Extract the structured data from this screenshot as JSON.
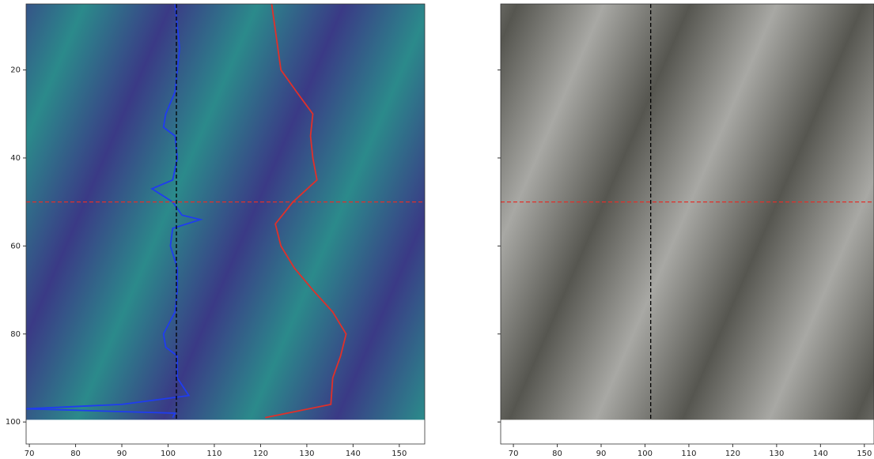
{
  "chart_data": [
    {
      "type": "image",
      "palette": [
        "#3a3a86",
        "#2b8a8b"
      ],
      "extent": [
        69.3,
        155.5,
        99.5,
        5
      ],
      "xlim": [
        69.3,
        155.5
      ],
      "ylim": [
        105,
        5
      ],
      "xticks": [
        70,
        80,
        90,
        100,
        110,
        120,
        130,
        140,
        150
      ],
      "yticks": [
        20,
        40,
        60,
        80,
        100
      ],
      "show_ytick_labels": true,
      "crosshair": {
        "x": 101.8,
        "y": 50,
        "x_color": "#000000",
        "y_color": "#e0302a"
      },
      "series": [
        {
          "color": "#e0302a",
          "x": [
            122.4,
            124.4,
            127.8,
            131.3,
            130.8,
            131.3,
            132.2,
            127,
            123.2,
            124.4,
            127.3,
            131.3,
            135.6,
            138.5,
            137.3,
            135.6,
            135.2,
            121
          ],
          "y": [
            5,
            20,
            25,
            30,
            35,
            40,
            45,
            50,
            55,
            60,
            65,
            70,
            75,
            80,
            85,
            90,
            96,
            99
          ]
        },
        {
          "color": "#1f3cf0",
          "x": [
            101.5,
            102,
            102.5,
            102,
            101.5,
            99.5,
            99,
            101.5,
            102,
            101,
            96.5,
            101,
            103,
            107,
            101,
            100.5,
            102,
            102,
            101.5,
            99,
            99.5,
            102,
            102,
            104.5,
            90,
            69.3,
            101.5,
            101
          ],
          "y": [
            5,
            10,
            15,
            20,
            25,
            30,
            33,
            35,
            40,
            45,
            47,
            50,
            53,
            54,
            56,
            60,
            65,
            70,
            75,
            80,
            83,
            85,
            90,
            94,
            96,
            97,
            98,
            99
          ]
        }
      ]
    },
    {
      "type": "image",
      "palette": [
        "#565650",
        "#a8a8a4"
      ],
      "extent": [
        67.1,
        152.2,
        99.5,
        5
      ],
      "xlim": [
        67.1,
        152.2
      ],
      "ylim": [
        105,
        5
      ],
      "xticks": [
        70,
        80,
        90,
        100,
        110,
        120,
        130,
        140,
        150
      ],
      "yticks": [
        20,
        40,
        60,
        80,
        100
      ],
      "show_ytick_labels": false,
      "crosshair": {
        "x": 101.3,
        "y": 50,
        "x_color": "#000000",
        "y_color": "#e0302a"
      },
      "series": []
    }
  ]
}
